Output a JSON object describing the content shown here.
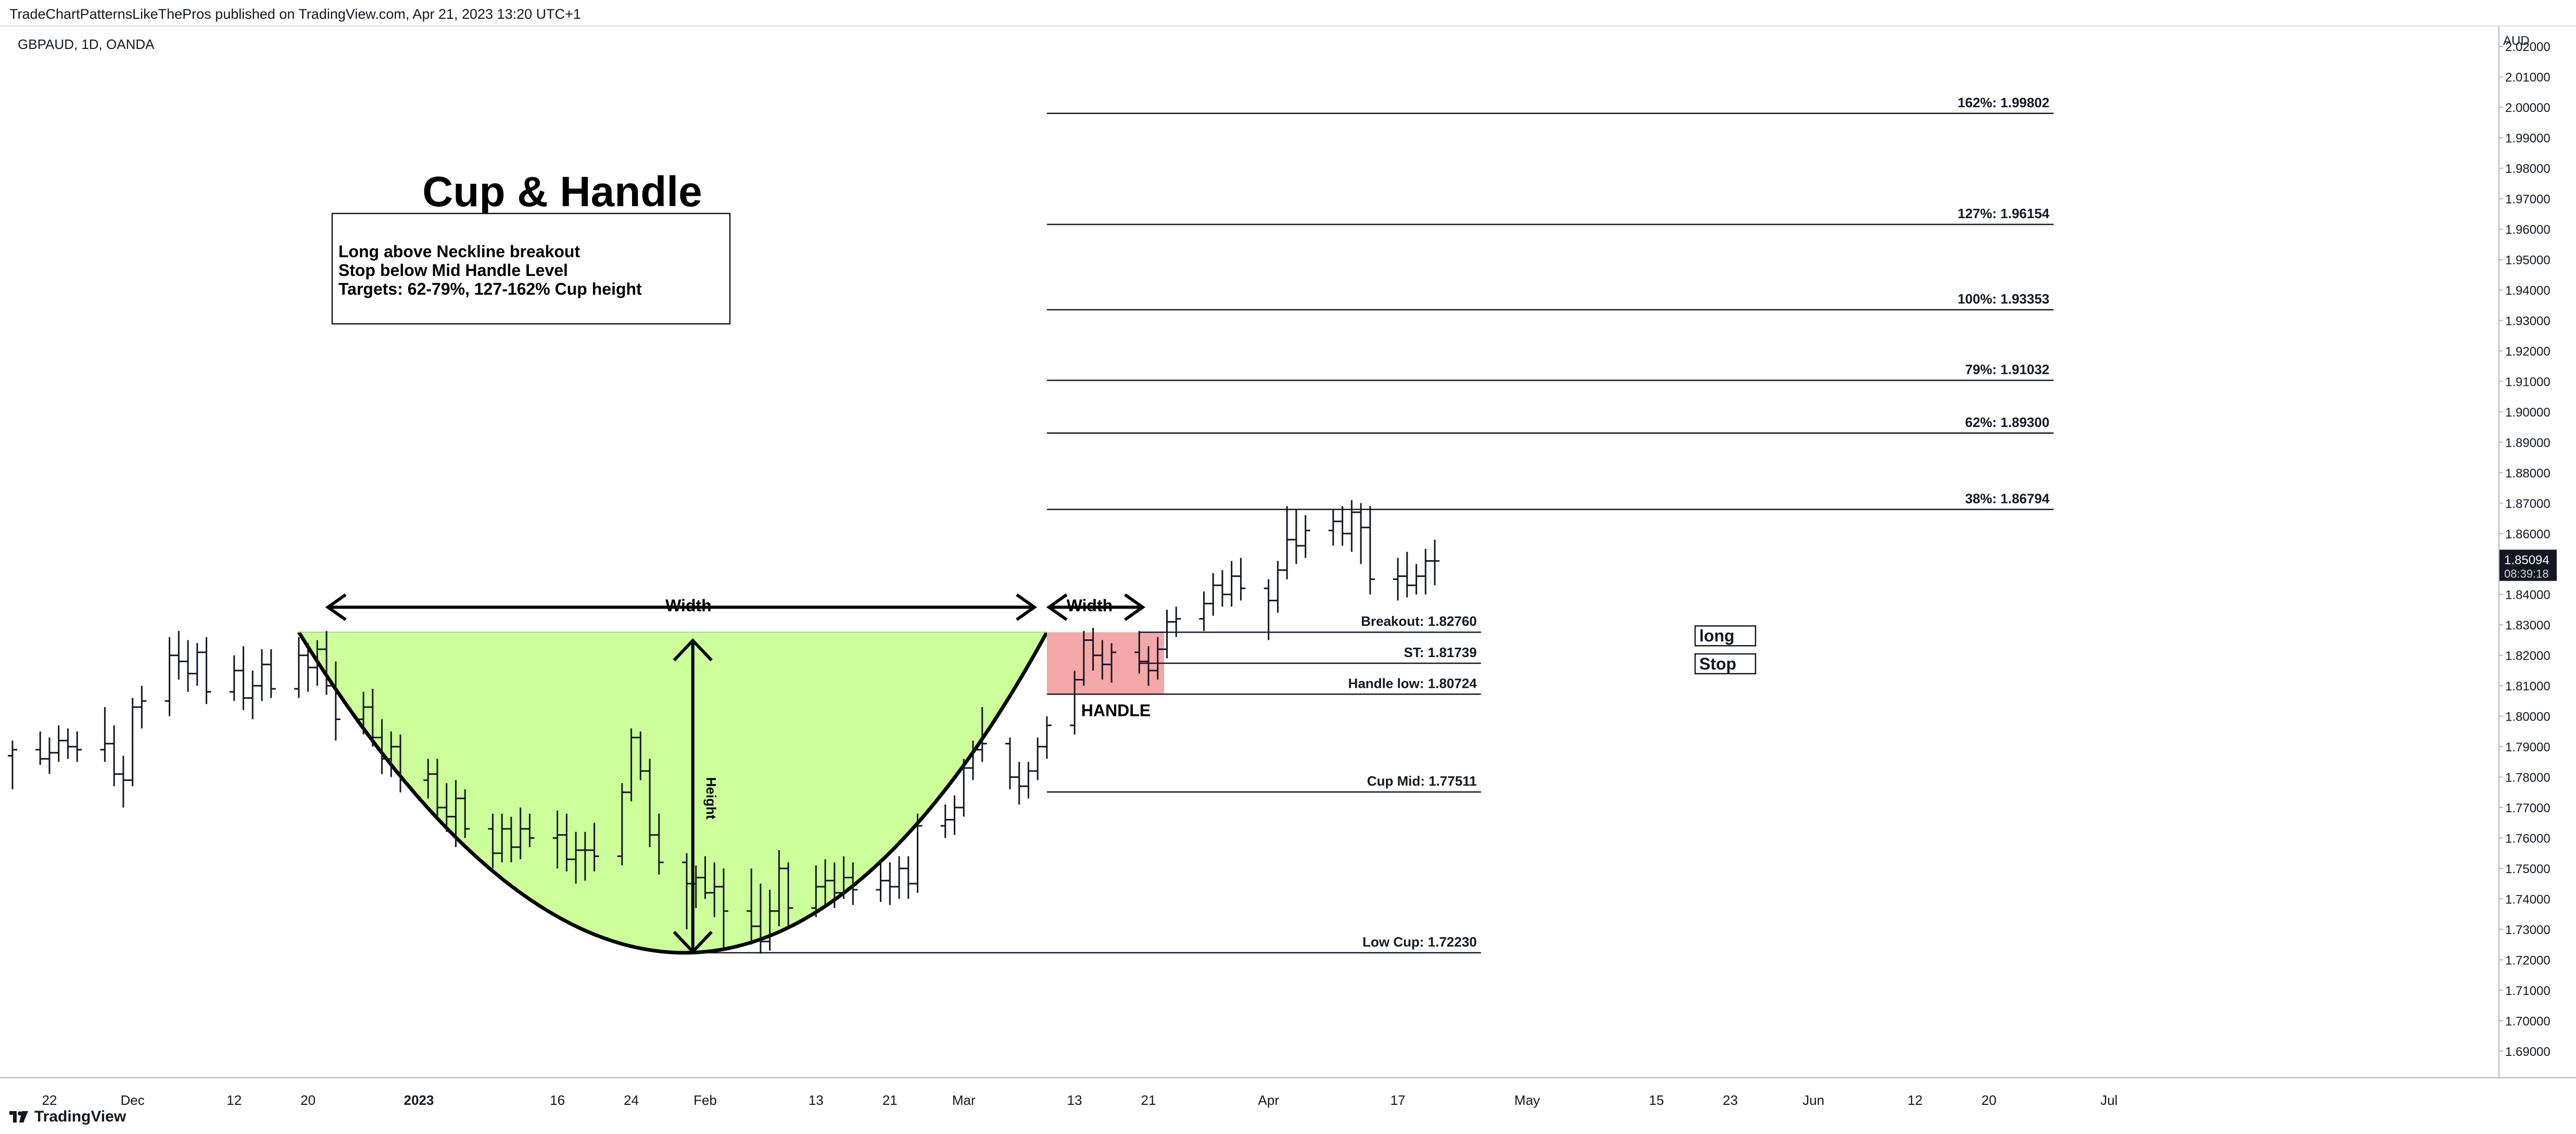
{
  "header": {
    "published": "TradeChartPatternsLikeThePros published on TradingView.com, Apr 21, 2023 13:20 UTC+1",
    "symbol": "GBPAUD, 1D, OANDA"
  },
  "footer": {
    "brand": "TradingView"
  },
  "chart_data": {
    "type": "bar",
    "subtype": "ohlc",
    "title": "Cup & Handle",
    "currency_label": "AUD",
    "ylim": [
      1.685,
      2.025
    ],
    "y_ticks": [
      "2.02000",
      "2.01000",
      "2.00000",
      "1.99000",
      "1.98000",
      "1.97000",
      "1.96000",
      "1.95000",
      "1.94000",
      "1.93000",
      "1.92000",
      "1.91000",
      "1.90000",
      "1.89000",
      "1.88000",
      "1.87000",
      "1.86000",
      "1.85000",
      "1.84000",
      "1.83000",
      "1.82000",
      "1.81000",
      "1.80000",
      "1.79000",
      "1.78000",
      "1.77000",
      "1.76000",
      "1.75000",
      "1.74000",
      "1.73000",
      "1.72000",
      "1.71000",
      "1.70000",
      "1.69000"
    ],
    "y_tick_values": [
      2.02,
      2.01,
      2.0,
      1.99,
      1.98,
      1.97,
      1.96,
      1.95,
      1.94,
      1.93,
      1.92,
      1.91,
      1.9,
      1.89,
      1.88,
      1.87,
      1.86,
      1.85,
      1.84,
      1.83,
      1.82,
      1.81,
      1.8,
      1.79,
      1.78,
      1.77,
      1.76,
      1.75,
      1.74,
      1.73,
      1.72,
      1.71,
      1.7,
      1.69
    ],
    "x_ticks": [
      {
        "label": "22",
        "date": "2022-11-22",
        "bold": false
      },
      {
        "label": "Dec",
        "date": "2022-12-01",
        "bold": false
      },
      {
        "label": "12",
        "date": "2022-12-12",
        "bold": false
      },
      {
        "label": "20",
        "date": "2022-12-20",
        "bold": false
      },
      {
        "label": "2023",
        "date": "2023-01-01",
        "bold": true
      },
      {
        "label": "16",
        "date": "2023-01-16",
        "bold": false
      },
      {
        "label": "24",
        "date": "2023-01-24",
        "bold": false
      },
      {
        "label": "Feb",
        "date": "2023-02-01",
        "bold": false
      },
      {
        "label": "13",
        "date": "2023-02-13",
        "bold": false
      },
      {
        "label": "21",
        "date": "2023-02-21",
        "bold": false
      },
      {
        "label": "Mar",
        "date": "2023-03-01",
        "bold": false
      },
      {
        "label": "13",
        "date": "2023-03-13",
        "bold": false
      },
      {
        "label": "21",
        "date": "2023-03-21",
        "bold": false
      },
      {
        "label": "Apr",
        "date": "2023-04-03",
        "bold": false
      },
      {
        "label": "17",
        "date": "2023-04-17",
        "bold": false
      },
      {
        "label": "May",
        "date": "2023-05-01",
        "bold": false
      },
      {
        "label": "15",
        "date": "2023-05-15",
        "bold": false
      },
      {
        "label": "23",
        "date": "2023-05-23",
        "bold": false
      },
      {
        "label": "Jun",
        "date": "2023-06-01",
        "bold": false
      },
      {
        "label": "12",
        "date": "2023-06-12",
        "bold": false
      },
      {
        "label": "20",
        "date": "2023-06-20",
        "bold": false
      },
      {
        "label": "Jul",
        "date": "2023-07-03",
        "bold": false
      }
    ],
    "last_price": {
      "value": "1.85094",
      "countdown": "08:39:18"
    },
    "bars": [
      {
        "d": "2022-11-18",
        "o": 1.787,
        "h": 1.792,
        "l": 1.776,
        "c": 1.789
      },
      {
        "d": "2022-11-21",
        "o": 1.789,
        "h": 1.795,
        "l": 1.784,
        "c": 1.786
      },
      {
        "d": "2022-11-22",
        "o": 1.786,
        "h": 1.793,
        "l": 1.781,
        "c": 1.788
      },
      {
        "d": "2022-11-23",
        "o": 1.788,
        "h": 1.797,
        "l": 1.785,
        "c": 1.792
      },
      {
        "d": "2022-11-24",
        "o": 1.792,
        "h": 1.796,
        "l": 1.786,
        "c": 1.79
      },
      {
        "d": "2022-11-25",
        "o": 1.79,
        "h": 1.795,
        "l": 1.785,
        "c": 1.789
      },
      {
        "d": "2022-11-28",
        "o": 1.789,
        "h": 1.803,
        "l": 1.785,
        "c": 1.791
      },
      {
        "d": "2022-11-29",
        "o": 1.791,
        "h": 1.797,
        "l": 1.777,
        "c": 1.781
      },
      {
        "d": "2022-11-30",
        "o": 1.781,
        "h": 1.787,
        "l": 1.77,
        "c": 1.779
      },
      {
        "d": "2022-12-01",
        "o": 1.779,
        "h": 1.806,
        "l": 1.777,
        "c": 1.803
      },
      {
        "d": "2022-12-02",
        "o": 1.803,
        "h": 1.81,
        "l": 1.796,
        "c": 1.805
      },
      {
        "d": "2022-12-05",
        "o": 1.805,
        "h": 1.826,
        "l": 1.8,
        "c": 1.82
      },
      {
        "d": "2022-12-06",
        "o": 1.82,
        "h": 1.828,
        "l": 1.812,
        "c": 1.818
      },
      {
        "d": "2022-12-07",
        "o": 1.818,
        "h": 1.825,
        "l": 1.808,
        "c": 1.814
      },
      {
        "d": "2022-12-08",
        "o": 1.814,
        "h": 1.824,
        "l": 1.81,
        "c": 1.821
      },
      {
        "d": "2022-12-09",
        "o": 1.821,
        "h": 1.826,
        "l": 1.804,
        "c": 1.808
      },
      {
        "d": "2022-12-12",
        "o": 1.808,
        "h": 1.82,
        "l": 1.805,
        "c": 1.815
      },
      {
        "d": "2022-12-13",
        "o": 1.815,
        "h": 1.823,
        "l": 1.802,
        "c": 1.806
      },
      {
        "d": "2022-12-14",
        "o": 1.806,
        "h": 1.815,
        "l": 1.799,
        "c": 1.81
      },
      {
        "d": "2022-12-15",
        "o": 1.81,
        "h": 1.822,
        "l": 1.805,
        "c": 1.817
      },
      {
        "d": "2022-12-16",
        "o": 1.817,
        "h": 1.822,
        "l": 1.806,
        "c": 1.809
      },
      {
        "d": "2022-12-19",
        "o": 1.809,
        "h": 1.826,
        "l": 1.806,
        "c": 1.82
      },
      {
        "d": "2022-12-20",
        "o": 1.82,
        "h": 1.824,
        "l": 1.808,
        "c": 1.816
      },
      {
        "d": "2022-12-21",
        "o": 1.816,
        "h": 1.825,
        "l": 1.81,
        "c": 1.822
      },
      {
        "d": "2022-12-22",
        "o": 1.822,
        "h": 1.828,
        "l": 1.807,
        "c": 1.81
      },
      {
        "d": "2022-12-23",
        "o": 1.81,
        "h": 1.818,
        "l": 1.792,
        "c": 1.799
      },
      {
        "d": "2022-12-26",
        "o": 1.799,
        "h": 1.808,
        "l": 1.794,
        "c": 1.803
      },
      {
        "d": "2022-12-27",
        "o": 1.803,
        "h": 1.809,
        "l": 1.79,
        "c": 1.793
      },
      {
        "d": "2022-12-28",
        "o": 1.793,
        "h": 1.799,
        "l": 1.781,
        "c": 1.786
      },
      {
        "d": "2022-12-29",
        "o": 1.786,
        "h": 1.795,
        "l": 1.78,
        "c": 1.79
      },
      {
        "d": "2022-12-30",
        "o": 1.79,
        "h": 1.794,
        "l": 1.775,
        "c": 1.779
      },
      {
        "d": "2023-01-02",
        "o": 1.779,
        "h": 1.786,
        "l": 1.773,
        "c": 1.781
      },
      {
        "d": "2023-01-03",
        "o": 1.781,
        "h": 1.786,
        "l": 1.766,
        "c": 1.77
      },
      {
        "d": "2023-01-04",
        "o": 1.77,
        "h": 1.778,
        "l": 1.762,
        "c": 1.767
      },
      {
        "d": "2023-01-05",
        "o": 1.767,
        "h": 1.779,
        "l": 1.757,
        "c": 1.773
      },
      {
        "d": "2023-01-06",
        "o": 1.773,
        "h": 1.776,
        "l": 1.76,
        "c": 1.763
      },
      {
        "d": "2023-01-09",
        "o": 1.763,
        "h": 1.768,
        "l": 1.75,
        "c": 1.755
      },
      {
        "d": "2023-01-10",
        "o": 1.755,
        "h": 1.768,
        "l": 1.752,
        "c": 1.763
      },
      {
        "d": "2023-01-11",
        "o": 1.763,
        "h": 1.767,
        "l": 1.752,
        "c": 1.757
      },
      {
        "d": "2023-01-12",
        "o": 1.757,
        "h": 1.77,
        "l": 1.753,
        "c": 1.763
      },
      {
        "d": "2023-01-13",
        "o": 1.763,
        "h": 1.768,
        "l": 1.757,
        "c": 1.76
      },
      {
        "d": "2023-01-16",
        "o": 1.76,
        "h": 1.769,
        "l": 1.75,
        "c": 1.761
      },
      {
        "d": "2023-01-17",
        "o": 1.761,
        "h": 1.768,
        "l": 1.749,
        "c": 1.753
      },
      {
        "d": "2023-01-18",
        "o": 1.753,
        "h": 1.762,
        "l": 1.745,
        "c": 1.756
      },
      {
        "d": "2023-01-19",
        "o": 1.756,
        "h": 1.762,
        "l": 1.746,
        "c": 1.756
      },
      {
        "d": "2023-01-20",
        "o": 1.756,
        "h": 1.765,
        "l": 1.749,
        "c": 1.754
      },
      {
        "d": "2023-01-23",
        "o": 1.754,
        "h": 1.778,
        "l": 1.751,
        "c": 1.775
      },
      {
        "d": "2023-01-24",
        "o": 1.775,
        "h": 1.796,
        "l": 1.772,
        "c": 1.793
      },
      {
        "d": "2023-01-25",
        "o": 1.793,
        "h": 1.795,
        "l": 1.779,
        "c": 1.782
      },
      {
        "d": "2023-01-26",
        "o": 1.782,
        "h": 1.786,
        "l": 1.757,
        "c": 1.761
      },
      {
        "d": "2023-01-27",
        "o": 1.761,
        "h": 1.768,
        "l": 1.748,
        "c": 1.752
      },
      {
        "d": "2023-01-30",
        "o": 1.752,
        "h": 1.755,
        "l": 1.73,
        "c": 1.745
      },
      {
        "d": "2023-01-31",
        "o": 1.745,
        "h": 1.751,
        "l": 1.737,
        "c": 1.747
      },
      {
        "d": "2023-02-01",
        "o": 1.747,
        "h": 1.754,
        "l": 1.74,
        "c": 1.742
      },
      {
        "d": "2023-02-02",
        "o": 1.742,
        "h": 1.752,
        "l": 1.734,
        "c": 1.744
      },
      {
        "d": "2023-02-03",
        "o": 1.744,
        "h": 1.75,
        "l": 1.723,
        "c": 1.736
      },
      {
        "d": "2023-02-06",
        "o": 1.736,
        "h": 1.75,
        "l": 1.725,
        "c": 1.731
      },
      {
        "d": "2023-02-07",
        "o": 1.731,
        "h": 1.745,
        "l": 1.722,
        "c": 1.726
      },
      {
        "d": "2023-02-08",
        "o": 1.726,
        "h": 1.743,
        "l": 1.723,
        "c": 1.736
      },
      {
        "d": "2023-02-09",
        "o": 1.736,
        "h": 1.756,
        "l": 1.731,
        "c": 1.75
      },
      {
        "d": "2023-02-10",
        "o": 1.75,
        "h": 1.752,
        "l": 1.731,
        "c": 1.737
      },
      {
        "d": "2023-02-13",
        "o": 1.737,
        "h": 1.751,
        "l": 1.734,
        "c": 1.744
      },
      {
        "d": "2023-02-14",
        "o": 1.744,
        "h": 1.753,
        "l": 1.738,
        "c": 1.746
      },
      {
        "d": "2023-02-15",
        "o": 1.746,
        "h": 1.752,
        "l": 1.737,
        "c": 1.742
      },
      {
        "d": "2023-02-16",
        "o": 1.742,
        "h": 1.754,
        "l": 1.74,
        "c": 1.747
      },
      {
        "d": "2023-02-17",
        "o": 1.747,
        "h": 1.752,
        "l": 1.738,
        "c": 1.743
      },
      {
        "d": "2023-02-20",
        "o": 1.743,
        "h": 1.753,
        "l": 1.739,
        "c": 1.746
      },
      {
        "d": "2023-02-21",
        "o": 1.746,
        "h": 1.752,
        "l": 1.738,
        "c": 1.744
      },
      {
        "d": "2023-02-22",
        "o": 1.744,
        "h": 1.754,
        "l": 1.74,
        "c": 1.75
      },
      {
        "d": "2023-02-23",
        "o": 1.75,
        "h": 1.754,
        "l": 1.74,
        "c": 1.745
      },
      {
        "d": "2023-02-24",
        "o": 1.745,
        "h": 1.768,
        "l": 1.742,
        "c": 1.764
      },
      {
        "d": "2023-02-27",
        "o": 1.764,
        "h": 1.771,
        "l": 1.76,
        "c": 1.766
      },
      {
        "d": "2023-02-28",
        "o": 1.766,
        "h": 1.774,
        "l": 1.761,
        "c": 1.77
      },
      {
        "d": "2023-03-01",
        "o": 1.77,
        "h": 1.786,
        "l": 1.767,
        "c": 1.783
      },
      {
        "d": "2023-03-02",
        "o": 1.783,
        "h": 1.792,
        "l": 1.779,
        "c": 1.789
      },
      {
        "d": "2023-03-03",
        "o": 1.789,
        "h": 1.803,
        "l": 1.785,
        "c": 1.791
      },
      {
        "d": "2023-03-06",
        "o": 1.791,
        "h": 1.793,
        "l": 1.776,
        "c": 1.78
      },
      {
        "d": "2023-03-07",
        "o": 1.78,
        "h": 1.785,
        "l": 1.771,
        "c": 1.777
      },
      {
        "d": "2023-03-08",
        "o": 1.777,
        "h": 1.785,
        "l": 1.773,
        "c": 1.782
      },
      {
        "d": "2023-03-09",
        "o": 1.782,
        "h": 1.793,
        "l": 1.779,
        "c": 1.79
      },
      {
        "d": "2023-03-10",
        "o": 1.79,
        "h": 1.8,
        "l": 1.786,
        "c": 1.797
      },
      {
        "d": "2023-03-13",
        "o": 1.797,
        "h": 1.815,
        "l": 1.794,
        "c": 1.812
      },
      {
        "d": "2023-03-14",
        "o": 1.812,
        "h": 1.828,
        "l": 1.81,
        "c": 1.825
      },
      {
        "d": "2023-03-15",
        "o": 1.825,
        "h": 1.829,
        "l": 1.815,
        "c": 1.82
      },
      {
        "d": "2023-03-16",
        "o": 1.82,
        "h": 1.825,
        "l": 1.812,
        "c": 1.817
      },
      {
        "d": "2023-03-17",
        "o": 1.817,
        "h": 1.824,
        "l": 1.811,
        "c": 1.821
      },
      {
        "d": "2023-03-20",
        "o": 1.821,
        "h": 1.828,
        "l": 1.814,
        "c": 1.818
      },
      {
        "d": "2023-03-21",
        "o": 1.818,
        "h": 1.823,
        "l": 1.81,
        "c": 1.815
      },
      {
        "d": "2023-03-22",
        "o": 1.815,
        "h": 1.826,
        "l": 1.812,
        "c": 1.822
      },
      {
        "d": "2023-03-23",
        "o": 1.822,
        "h": 1.835,
        "l": 1.819,
        "c": 1.831
      },
      {
        "d": "2023-03-24",
        "o": 1.831,
        "h": 1.836,
        "l": 1.826,
        "c": 1.832
      },
      {
        "d": "2023-03-27",
        "o": 1.832,
        "h": 1.841,
        "l": 1.828,
        "c": 1.837
      },
      {
        "d": "2023-03-28",
        "o": 1.837,
        "h": 1.847,
        "l": 1.833,
        "c": 1.843
      },
      {
        "d": "2023-03-29",
        "o": 1.843,
        "h": 1.848,
        "l": 1.836,
        "c": 1.84
      },
      {
        "d": "2023-03-30",
        "o": 1.84,
        "h": 1.851,
        "l": 1.836,
        "c": 1.846
      },
      {
        "d": "2023-03-31",
        "o": 1.846,
        "h": 1.852,
        "l": 1.838,
        "c": 1.842
      },
      {
        "d": "2023-04-03",
        "o": 1.842,
        "h": 1.845,
        "l": 1.825,
        "c": 1.838
      },
      {
        "d": "2023-04-04",
        "o": 1.838,
        "h": 1.851,
        "l": 1.834,
        "c": 1.848
      },
      {
        "d": "2023-04-05",
        "o": 1.848,
        "h": 1.869,
        "l": 1.845,
        "c": 1.858
      },
      {
        "d": "2023-04-06",
        "o": 1.858,
        "h": 1.868,
        "l": 1.85,
        "c": 1.856
      },
      {
        "d": "2023-04-07",
        "o": 1.856,
        "h": 1.866,
        "l": 1.852,
        "c": 1.861
      },
      {
        "d": "2023-04-10",
        "o": 1.861,
        "h": 1.868,
        "l": 1.856,
        "c": 1.864
      },
      {
        "d": "2023-04-11",
        "o": 1.864,
        "h": 1.869,
        "l": 1.856,
        "c": 1.86
      },
      {
        "d": "2023-04-12",
        "o": 1.86,
        "h": 1.871,
        "l": 1.854,
        "c": 1.867
      },
      {
        "d": "2023-04-13",
        "o": 1.867,
        "h": 1.87,
        "l": 1.85,
        "c": 1.862
      },
      {
        "d": "2023-04-14",
        "o": 1.862,
        "h": 1.869,
        "l": 1.84,
        "c": 1.845
      },
      {
        "d": "2023-04-17",
        "o": 1.845,
        "h": 1.852,
        "l": 1.838,
        "c": 1.846
      },
      {
        "d": "2023-04-18",
        "o": 1.846,
        "h": 1.854,
        "l": 1.839,
        "c": 1.843
      },
      {
        "d": "2023-04-19",
        "o": 1.843,
        "h": 1.85,
        "l": 1.84,
        "c": 1.846
      },
      {
        "d": "2023-04-20",
        "o": 1.846,
        "h": 1.855,
        "l": 1.84,
        "c": 1.851
      },
      {
        "d": "2023-04-21",
        "o": 1.851,
        "h": 1.858,
        "l": 1.843,
        "c": 1.851
      }
    ],
    "levels": [
      {
        "label": "162%: 1.99802",
        "value": 1.99802,
        "start": "2023-03-10",
        "end": "2023-06-27"
      },
      {
        "label": "127%: 1.96154",
        "value": 1.96154,
        "start": "2023-03-10",
        "end": "2023-06-27"
      },
      {
        "label": "100%: 1.93353",
        "value": 1.93353,
        "start": "2023-03-10",
        "end": "2023-06-27"
      },
      {
        "label": "79%: 1.91032",
        "value": 1.91032,
        "start": "2023-03-10",
        "end": "2023-06-27"
      },
      {
        "label": "62%: 1.89300",
        "value": 1.893,
        "start": "2023-03-10",
        "end": "2023-06-27"
      },
      {
        "label": "38%: 1.86794",
        "value": 1.86794,
        "start": "2023-03-10",
        "end": "2023-06-27"
      },
      {
        "label": "Breakout: 1.82760",
        "value": 1.8276,
        "start": "2023-03-20",
        "end": "2023-04-26"
      },
      {
        "label": "ST: 1.81739",
        "value": 1.81739,
        "start": "2023-03-20",
        "end": "2023-04-26"
      },
      {
        "label": "Handle low: 1.80724",
        "value": 1.80724,
        "start": "2023-03-10",
        "end": "2023-04-26"
      },
      {
        "label": "Cup Mid: 1.77511",
        "value": 1.77511,
        "start": "2023-03-10",
        "end": "2023-04-26"
      },
      {
        "label": "Low Cup: 1.72230",
        "value": 1.7223,
        "start": "2023-01-31",
        "end": "2023-04-26"
      }
    ],
    "cup": {
      "left_date": "2022-12-19",
      "right_date": "2023-03-10",
      "bottom_date": "2023-01-31",
      "rim": 1.8276,
      "bottom": 1.7223,
      "fill": "#ccff99"
    },
    "handle": {
      "start": "2023-03-10",
      "end": "2023-03-21",
      "top": 1.8276,
      "bottom": 1.80724,
      "fill": "#f4a8a8",
      "label": "HANDLE"
    },
    "width_label_cup": "Width",
    "width_label_handle": "Width",
    "height_label": "Height",
    "tags": [
      {
        "text": "long",
        "value": 1.8276
      },
      {
        "text": "Stop",
        "value": 1.81739
      }
    ],
    "notes": [
      "Long above Neckline breakout",
      "Stop below Mid Handle Level",
      "Targets: 62-79%, 127-162% Cup height"
    ]
  }
}
